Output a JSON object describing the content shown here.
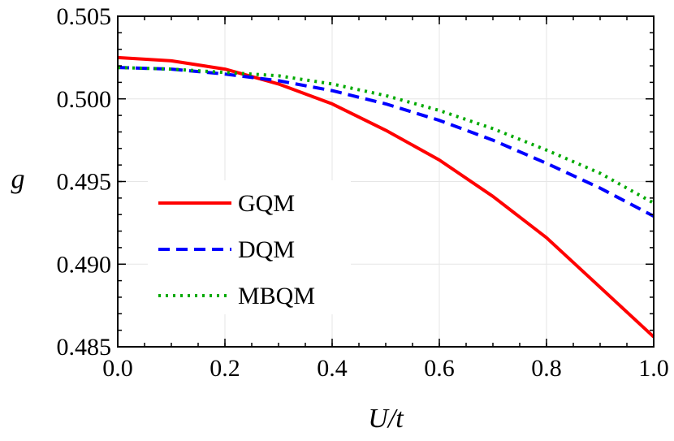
{
  "chart_data": {
    "type": "line",
    "title": "",
    "xlabel": "U/t",
    "ylabel": "g",
    "xlim": [
      0.0,
      1.0
    ],
    "ylim": [
      0.485,
      0.505
    ],
    "x_ticks": [
      "0.0",
      "0.2",
      "0.4",
      "0.6",
      "0.8",
      "1.0"
    ],
    "y_ticks": [
      "0.485",
      "0.490",
      "0.495",
      "0.500",
      "0.505"
    ],
    "grid": true,
    "legend_position": "left",
    "x": [
      0.0,
      0.1,
      0.2,
      0.3,
      0.4,
      0.5,
      0.6,
      0.7,
      0.8,
      0.9,
      1.0
    ],
    "series": [
      {
        "name": "GQM",
        "style": "solid",
        "color": "#ff0000",
        "values": [
          0.5025,
          0.5023,
          0.5018,
          0.5009,
          0.4997,
          0.4981,
          0.4963,
          0.4941,
          0.4916,
          0.4886,
          0.4856
        ]
      },
      {
        "name": "DQM",
        "style": "dashed",
        "color": "#0000ff",
        "values": [
          0.5019,
          0.5018,
          0.5015,
          0.5011,
          0.5005,
          0.4997,
          0.4987,
          0.4975,
          0.4961,
          0.4946,
          0.4929
        ]
      },
      {
        "name": "MBQM",
        "style": "dotted",
        "color": "#00aa00",
        "values": [
          0.5019,
          0.5018,
          0.5016,
          0.5014,
          0.5009,
          0.5002,
          0.4993,
          0.4982,
          0.4969,
          0.4955,
          0.4937
        ]
      }
    ]
  }
}
